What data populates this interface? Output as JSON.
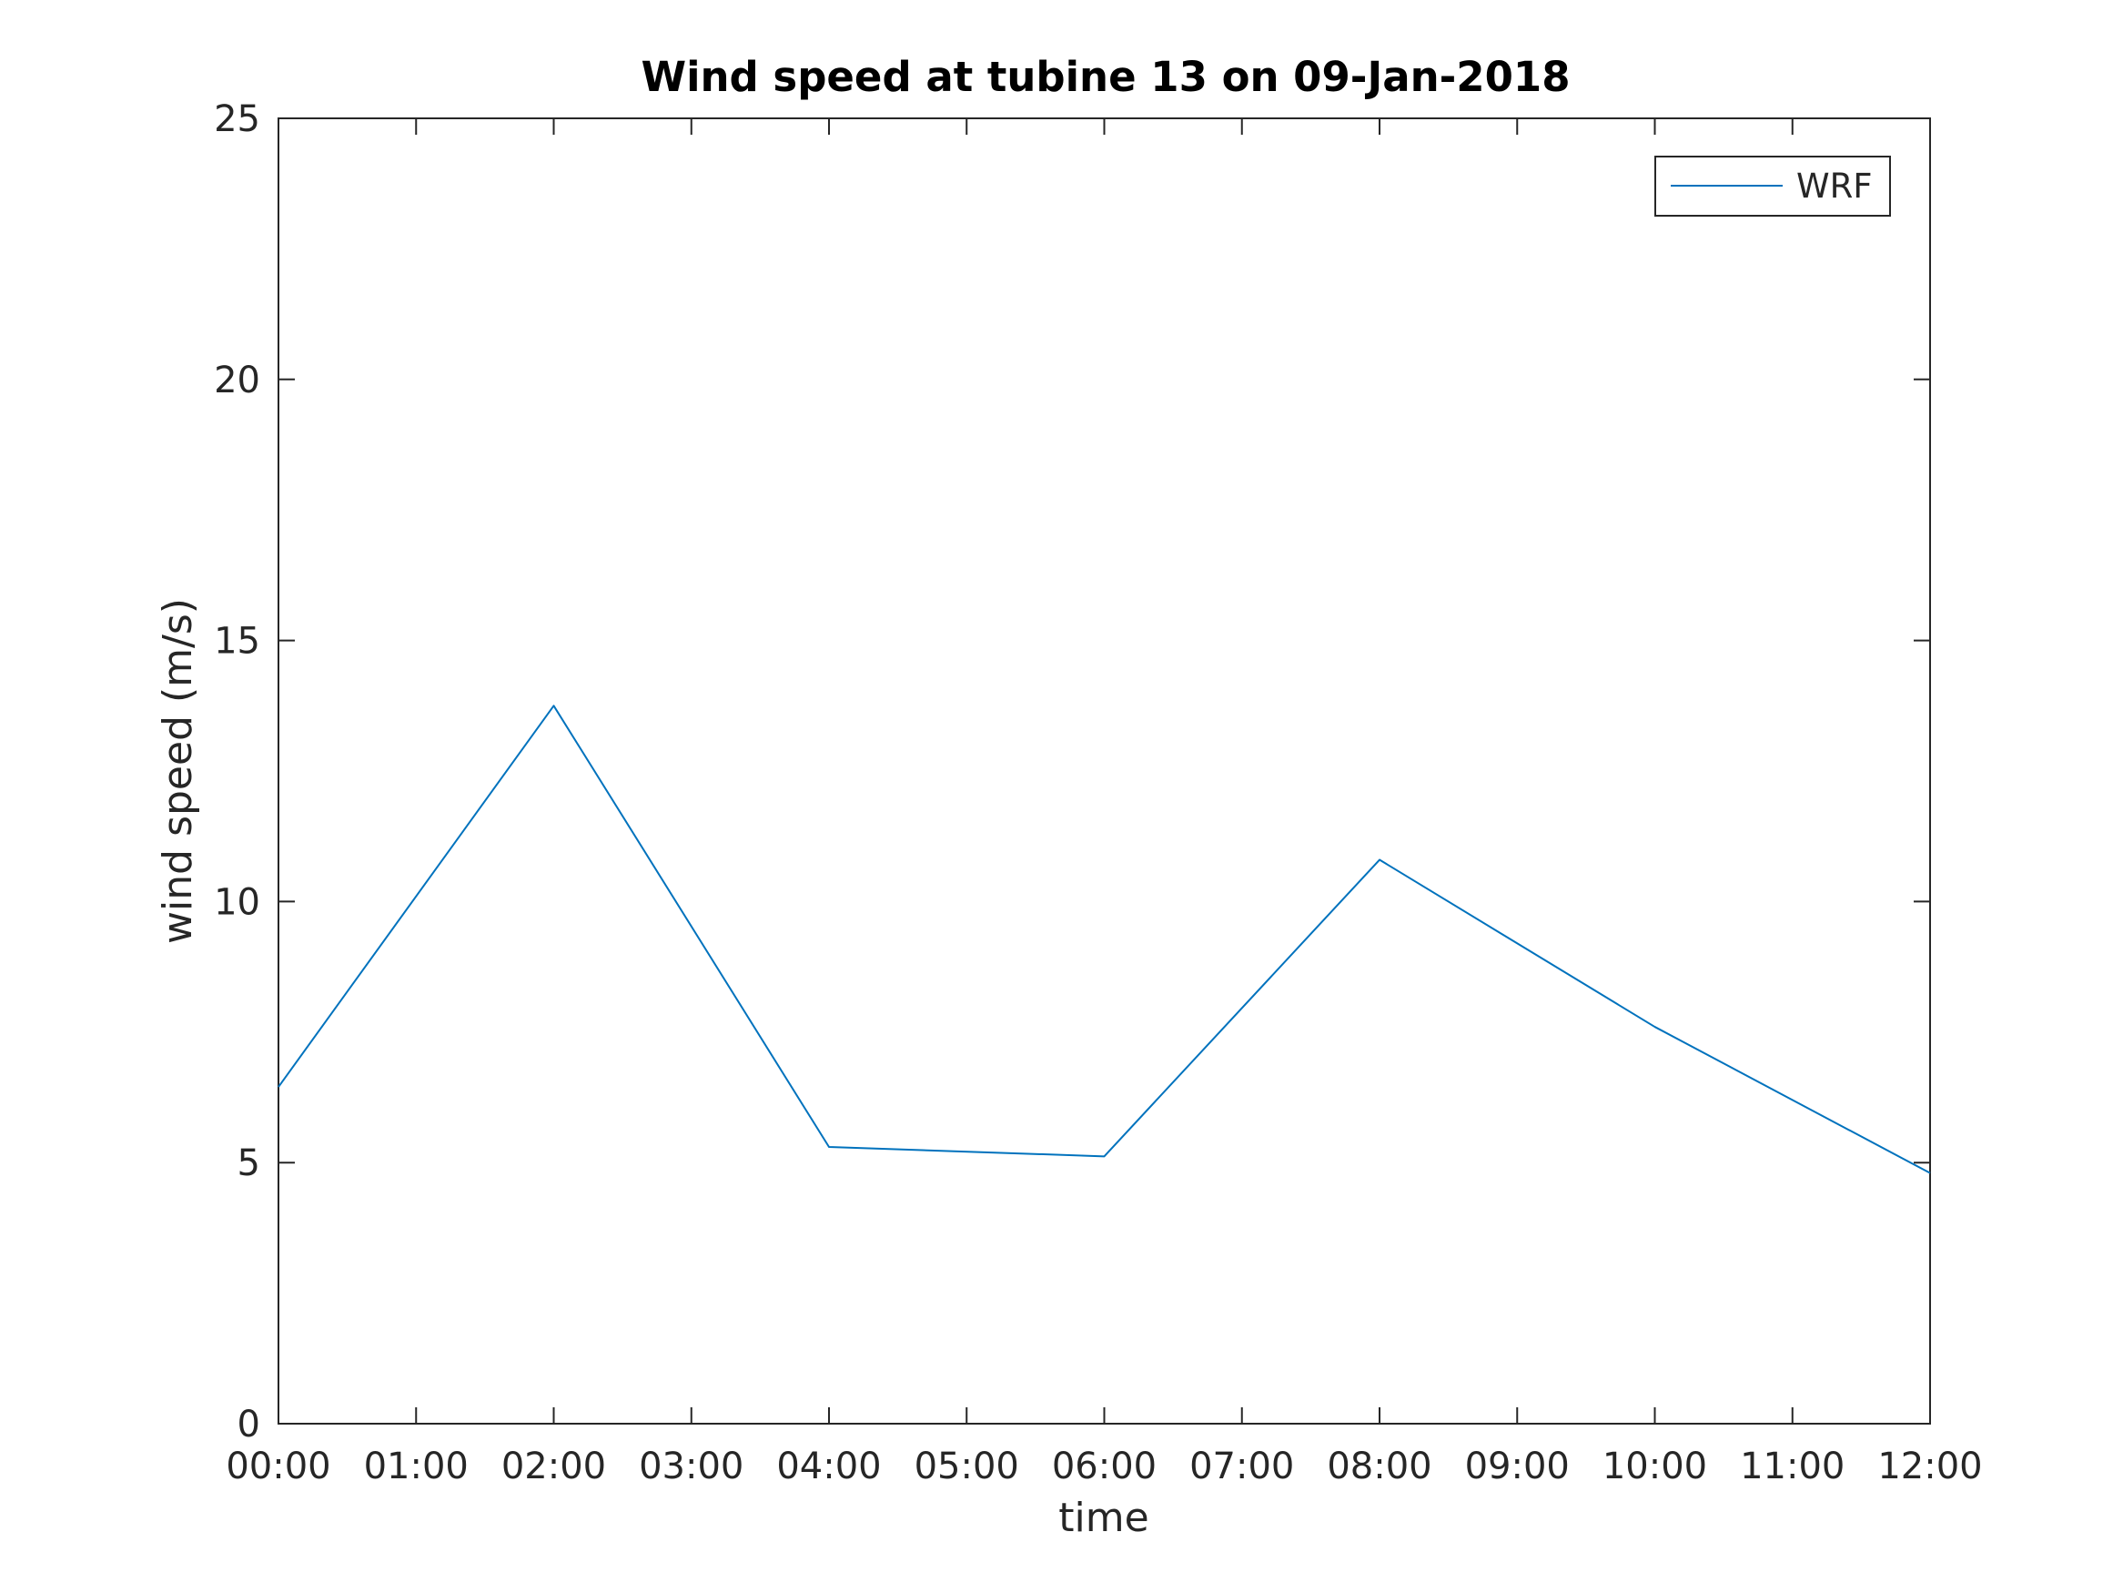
{
  "chart_data": {
    "type": "line",
    "title": "Wind speed at tubine 13 on 09-Jan-2018",
    "xlabel": "time",
    "ylabel": "wind speed (m/s)",
    "x": [
      "00:00",
      "02:00",
      "04:00",
      "06:00",
      "08:00",
      "10:00",
      "12:00"
    ],
    "x_ticks": [
      "00:00",
      "01:00",
      "02:00",
      "03:00",
      "04:00",
      "05:00",
      "06:00",
      "07:00",
      "08:00",
      "09:00",
      "10:00",
      "11:00",
      "12:00"
    ],
    "xlim": [
      "00:00",
      "12:00"
    ],
    "ylim": [
      0,
      25
    ],
    "y_ticks": [
      0,
      5,
      10,
      15,
      20,
      25
    ],
    "series": [
      {
        "name": "WRF",
        "color": "#0072BD",
        "values": [
          6.45,
          13.75,
          5.3,
          5.12,
          10.8,
          7.6,
          4.8
        ]
      }
    ],
    "legend": {
      "position": "top-right"
    },
    "grid": false
  }
}
